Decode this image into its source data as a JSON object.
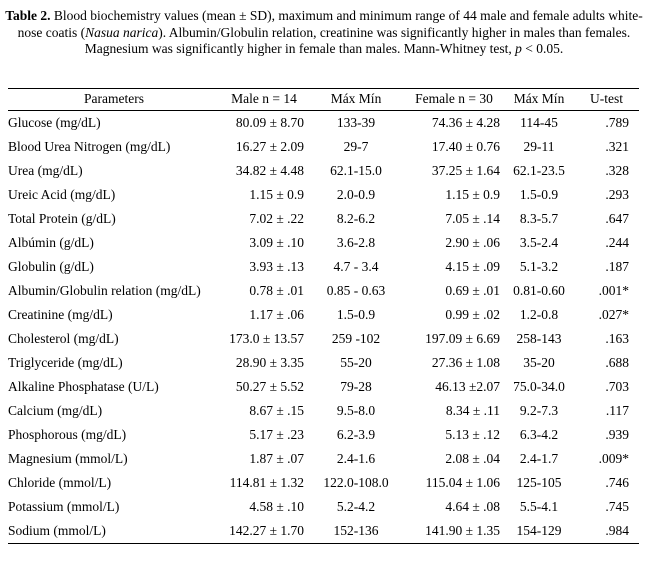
{
  "caption": {
    "label": "Table 2.",
    "text_before_italic": " Blood biochemistry values (mean ± SD), maximum and minimum range of 44 male and female adults white-nose coatis (",
    "italic_species": "Nasua narica",
    "text_mid": "). Albumin/Globulin relation, creatinine was significantly higher in males than females. Magnesium was significantly higher in female than males. Mann-Whitney test, ",
    "italic_p": "p",
    "text_end": " < 0.05."
  },
  "table": {
    "headers": [
      "Parameters",
      "Male n = 14",
      "Máx Mín",
      "Female n = 30",
      "Máx Mín",
      "U-test"
    ],
    "rows": [
      {
        "param": "Glucose (mg/dL)",
        "male": "80.09 ± 8.70",
        "male_range": "133-39",
        "female": "74.36 ± 4.28",
        "female_range": "114-45",
        "u": ".789"
      },
      {
        "param": "Blood Urea Nitrogen (mg/dL)",
        "male": "16.27 ± 2.09",
        "male_range": "29-7",
        "female": "17.40 ± 0.76",
        "female_range": "29-11",
        "u": ".321"
      },
      {
        "param": "Urea (mg/dL)",
        "male": "34.82 ± 4.48",
        "male_range": "62.1-15.0",
        "female": "37.25 ± 1.64",
        "female_range": "62.1-23.5",
        "u": ".328"
      },
      {
        "param": "Ureic Acid (mg/dL)",
        "male": "1.15 ± 0.9",
        "male_range": "2.0-0.9",
        "female": "1.15 ± 0.9",
        "female_range": "1.5-0.9",
        "u": ".293"
      },
      {
        "param": "Total Protein (g/dL)",
        "male": "7.02 ± .22",
        "male_range": "8.2-6.2",
        "female": "7.05 ± .14",
        "female_range": "8.3-5.7",
        "u": ".647"
      },
      {
        "param": "Albúmin (g/dL)",
        "male": "3.09 ± .10",
        "male_range": "3.6-2.8",
        "female": "2.90 ± .06",
        "female_range": "3.5-2.4",
        "u": ".244"
      },
      {
        "param": "Globulin (g/dL)",
        "male": "3.93 ± .13",
        "male_range": "4.7 - 3.4",
        "female": "4.15 ± .09",
        "female_range": "5.1-3.2",
        "u": ".187"
      },
      {
        "param": "Albumin/Globulin relation (mg/dL)",
        "male": "0.78 ± .01",
        "male_range": "0.85 - 0.63",
        "female": "0.69 ± .01",
        "female_range": "0.81-0.60",
        "u": ".001*"
      },
      {
        "param": "Creatinine (mg/dL)",
        "male": "1.17 ± .06",
        "male_range": "1.5-0.9",
        "female": "0.99 ± .02",
        "female_range": "1.2-0.8",
        "u": ".027*"
      },
      {
        "param": "Cholesterol (mg/dL)",
        "male": "173.0 ± 13.57",
        "male_range": "259 -102",
        "female": "197.09 ± 6.69",
        "female_range": "258-143",
        "u": ".163"
      },
      {
        "param": "Triglyceride (mg/dL)",
        "male": "28.90 ± 3.35",
        "male_range": "55-20",
        "female": "27.36 ± 1.08",
        "female_range": "35-20",
        "u": ".688"
      },
      {
        "param": "Alkaline Phosphatase (U/L)",
        "male": "50.27 ± 5.52",
        "male_range": "79-28",
        "female": "46.13 ±2.07",
        "female_range": "75.0-34.0",
        "u": ".703"
      },
      {
        "param": "Calcium (mg/dL)",
        "male": "8.67 ± .15",
        "male_range": "9.5-8.0",
        "female": "8.34 ± .11",
        "female_range": "9.2-7.3",
        "u": ".117"
      },
      {
        "param": "Phosphorous (mg/dL)",
        "male": "5.17 ± .23",
        "male_range": "6.2-3.9",
        "female": "5.13 ± .12",
        "female_range": "6.3-4.2",
        "u": ".939"
      },
      {
        "param": "Magnesium (mmol/L)",
        "male": "1.87 ± .07",
        "male_range": "2.4-1.6",
        "female": "2.08 ± .04",
        "female_range": "2.4-1.7",
        "u": ".009*"
      },
      {
        "param": "Chloride (mmol/L)",
        "male": "114.81 ± 1.32",
        "male_range": "122.0-108.0",
        "female": "115.04 ± 1.06",
        "female_range": "125-105",
        "u": ".746"
      },
      {
        "param": "Potassium (mmol/L)",
        "male": "4.58 ± .10",
        "male_range": "5.2-4.2",
        "female": "4.64 ± .08",
        "female_range": "5.5-4.1",
        "u": ".745"
      },
      {
        "param": "Sodium (mmol/L)",
        "male": "142.27 ± 1.70",
        "male_range": "152-136",
        "female": "141.90 ± 1.35",
        "female_range": "154-129",
        "u": ".984"
      }
    ]
  }
}
